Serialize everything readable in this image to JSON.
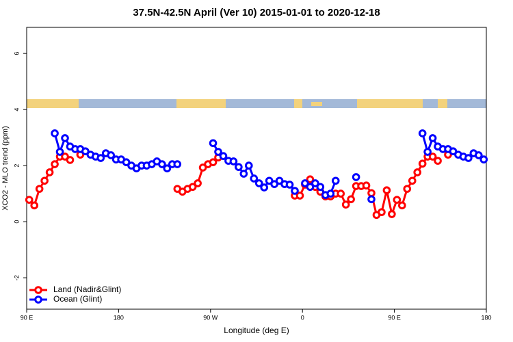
{
  "chart_data": {
    "type": "line",
    "title": "37.5N-42.5N April (Ver 10)   2015-01-01 to 2020-12-18",
    "x_label": "Longitude (deg E)",
    "y_label": "XCO2 - MLO trend (ppm)",
    "xlim": [
      90,
      540
    ],
    "ylim": [
      -3.12,
      6.93
    ],
    "xticks": [
      {
        "value": 90,
        "label": "90 E"
      },
      180,
      {
        "value": 270,
        "label": "90 W"
      },
      {
        "value": 360,
        "label": "0"
      },
      {
        "value": 450,
        "label": "90 E"
      },
      {
        "value": 540,
        "label": "180"
      }
    ],
    "yticks": [
      -2,
      0,
      2,
      4,
      6
    ],
    "legend": "bottom-left",
    "x": [
      92.5,
      97.5,
      102.5,
      107.5,
      112.5,
      117.5,
      122.5,
      127.5,
      132.5,
      137.5,
      142.5,
      147.5,
      152.5,
      157.5,
      162.5,
      167.5,
      172.5,
      177.5,
      182.5,
      187.5,
      192.5,
      197.5,
      202.5,
      207.5,
      212.5,
      217.5,
      222.5,
      227.5,
      232.5,
      237.5,
      242.5,
      247.5,
      252.5,
      257.5,
      262.5,
      267.5,
      272.5,
      277.5,
      282.5,
      287.5,
      292.5,
      297.5,
      302.5,
      307.5,
      312.5,
      317.5,
      322.5,
      327.5,
      332.5,
      337.5,
      342.5,
      347.5,
      352.5,
      357.5,
      362.5,
      367.5,
      372.5,
      377.5,
      382.5,
      387.5,
      392.5,
      397.5,
      402.5,
      407.5,
      412.5,
      417.5,
      422.5,
      427.5,
      432.5,
      437.5,
      442.5,
      447.5,
      452.5,
      457.5,
      462.5,
      467.5,
      472.5,
      477.5,
      482.5,
      487.5,
      492.5,
      497.5,
      502.5,
      507.5,
      512.5,
      517.5,
      522.5,
      527.5,
      532.5,
      537.5
    ],
    "series": [
      {
        "name": "Land (Nadir&Glint)",
        "color": "#ff0000",
        "values": [
          0.78,
          0.58,
          1.17,
          1.46,
          1.76,
          2.05,
          2.32,
          2.32,
          2.2,
          null,
          2.39,
          null,
          null,
          null,
          null,
          null,
          null,
          null,
          null,
          null,
          null,
          null,
          null,
          null,
          null,
          null,
          null,
          null,
          null,
          1.17,
          1.07,
          1.17,
          1.24,
          1.37,
          1.93,
          2.05,
          2.12,
          2.29,
          null,
          null,
          null,
          null,
          null,
          null,
          null,
          null,
          null,
          null,
          null,
          null,
          null,
          null,
          0.93,
          0.93,
          1.32,
          1.51,
          1.24,
          1.07,
          0.9,
          0.9,
          1.0,
          1.0,
          0.61,
          0.8,
          1.27,
          1.27,
          1.29,
          1.02,
          0.24,
          0.34,
          1.12,
          0.27,
          0.78,
          0.58,
          1.17,
          1.46,
          1.76,
          2.07,
          2.32,
          2.32,
          2.17,
          null,
          2.39,
          null,
          null,
          null,
          null,
          null,
          null,
          null
        ]
      },
      {
        "name": "Ocean (Glint)",
        "color": "#0000ff",
        "values": [
          null,
          null,
          null,
          null,
          null,
          3.15,
          2.49,
          2.98,
          2.68,
          2.59,
          2.59,
          2.51,
          2.39,
          2.32,
          2.27,
          2.44,
          2.37,
          2.22,
          2.22,
          2.12,
          2.0,
          1.9,
          2.0,
          2.0,
          2.05,
          2.15,
          2.05,
          1.9,
          2.05,
          2.05,
          null,
          null,
          null,
          null,
          null,
          null,
          2.8,
          2.49,
          2.34,
          2.17,
          2.15,
          1.95,
          1.71,
          2.0,
          1.54,
          1.37,
          1.22,
          1.46,
          1.34,
          1.46,
          1.34,
          1.32,
          1.1,
          null,
          1.37,
          1.24,
          1.37,
          1.24,
          0.95,
          1.0,
          1.46,
          null,
          null,
          null,
          1.59,
          null,
          null,
          0.8,
          null,
          null,
          null,
          null,
          null,
          null,
          null,
          null,
          null,
          3.15,
          2.49,
          2.98,
          2.68,
          2.59,
          2.59,
          2.51,
          2.39,
          2.32,
          2.27,
          2.44,
          2.37,
          2.22
        ]
      }
    ]
  }
}
